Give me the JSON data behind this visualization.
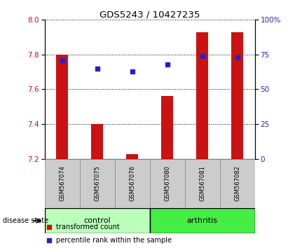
{
  "title": "GDS5243 / 10427235",
  "samples": [
    "GSM567074",
    "GSM567075",
    "GSM567076",
    "GSM567080",
    "GSM567081",
    "GSM567082"
  ],
  "groups": [
    "control",
    "control",
    "control",
    "arthritis",
    "arthritis",
    "arthritis"
  ],
  "transformed_count": [
    7.8,
    7.4,
    7.225,
    7.56,
    7.93,
    7.93
  ],
  "percentile_rank": [
    71,
    65,
    63,
    68,
    74,
    73
  ],
  "y_min": 7.2,
  "y_max": 8.0,
  "y_ticks_left": [
    7.2,
    7.4,
    7.6,
    7.8,
    8.0
  ],
  "y_ticks_right": [
    0,
    25,
    50,
    75,
    100
  ],
  "y_ticks_right_labels": [
    "0",
    "25",
    "50",
    "75",
    "100%"
  ],
  "bar_color": "#cc1111",
  "dot_color": "#2222cc",
  "control_color": "#bbffbb",
  "arthritis_color": "#44ee44",
  "label_bg_color": "#cccccc",
  "bar_bottom": 7.2,
  "disease_state_label": "disease state",
  "legend_bar_label": "transformed count",
  "legend_dot_label": "percentile rank within the sample"
}
